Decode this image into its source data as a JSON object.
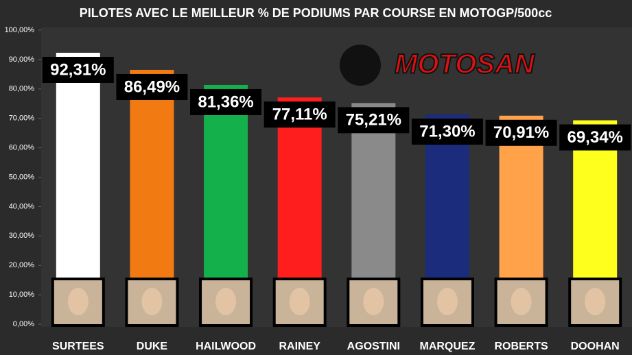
{
  "chart_data": {
    "type": "bar",
    "title": "PILOTES AVEC LE MEILLEUR % DE PODIUMS PAR COURSE EN MOTOGP/500cc",
    "categories": [
      "SURTEES",
      "DUKE",
      "HAILWOOD",
      "RAINEY",
      "AGOSTINI",
      "MARQUEZ",
      "ROBERTS",
      "DOOHAN"
    ],
    "values": [
      92.31,
      86.49,
      81.36,
      77.11,
      75.21,
      71.3,
      70.91,
      69.34
    ],
    "value_labels": [
      "92,31%",
      "86,49%",
      "81,36%",
      "77,11%",
      "75,21%",
      "71,30%",
      "70,91%",
      "69,34%"
    ],
    "colors": [
      "#ffffff",
      "#f27a12",
      "#14b04c",
      "#ff1e1e",
      "#8a8a8a",
      "#1c2c7c",
      "#ffa24a",
      "#ffff1e"
    ],
    "ylim": [
      0,
      100
    ],
    "yticks": [
      {
        "value": 0,
        "label": "0,00%"
      },
      {
        "value": 10,
        "label": "10,00%"
      },
      {
        "value": 20,
        "label": "20,00%"
      },
      {
        "value": 30,
        "label": "30,00%"
      },
      {
        "value": 40,
        "label": "40,00%"
      },
      {
        "value": 50,
        "label": "50,00%"
      },
      {
        "value": 60,
        "label": "60,00%"
      },
      {
        "value": 70,
        "label": "70,00%"
      },
      {
        "value": 80,
        "label": "80,00%"
      },
      {
        "value": 90,
        "label": "90,00%"
      },
      {
        "value": 100,
        "label": "100,00%"
      }
    ],
    "grid": false
  },
  "logo": "MOTOSAN"
}
